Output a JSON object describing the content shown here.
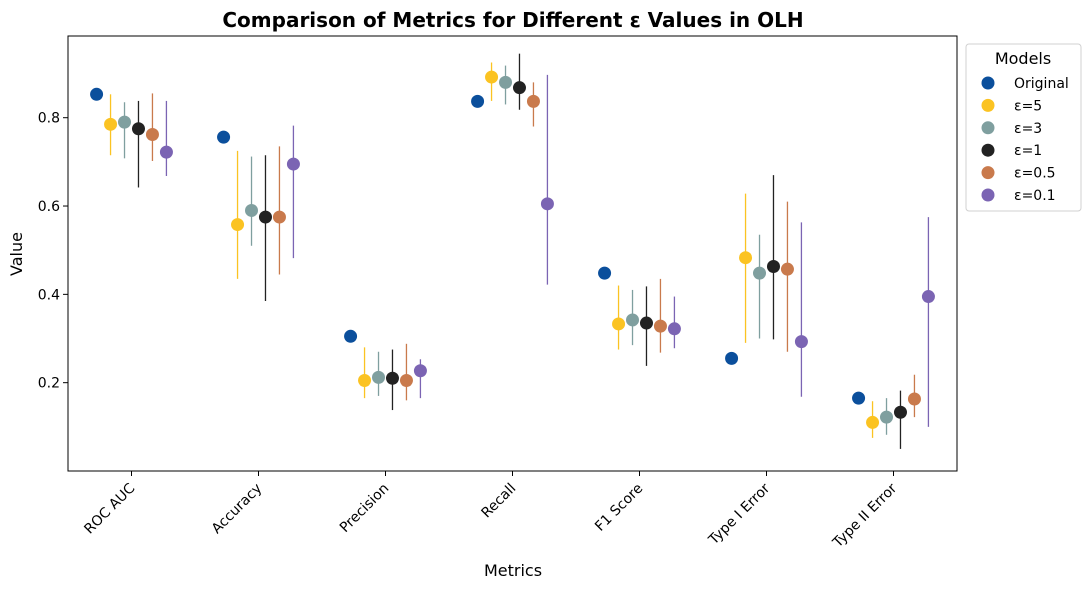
{
  "chart_data": {
    "type": "scatter",
    "title": "Comparison of Metrics for Different ε Values in OLH",
    "xlabel": "Metrics",
    "ylabel": "Value",
    "ylim": [
      0.0,
      0.985
    ],
    "yticks": [
      "0.2",
      "0.4",
      "0.6",
      "0.8"
    ],
    "categories": [
      "ROC AUC",
      "Accuracy",
      "Precision",
      "Recall",
      "F1 Score",
      "Type I Error",
      "Type II Error"
    ],
    "legend": {
      "title": "Models",
      "placement": "outside top-right"
    },
    "series": [
      {
        "name": "Original",
        "color": "#0b4f9c",
        "values": [
          0.853,
          0.756,
          0.305,
          0.837,
          0.448,
          0.255,
          0.165
        ],
        "err_low": [
          null,
          null,
          null,
          null,
          null,
          null,
          null
        ],
        "err_high": [
          null,
          null,
          null,
          null,
          null,
          null,
          null
        ]
      },
      {
        "name": "ε=5",
        "color": "#fbc322",
        "values": [
          0.785,
          0.558,
          0.205,
          0.892,
          0.333,
          0.483,
          0.11
        ],
        "err_low": [
          0.715,
          0.435,
          0.165,
          0.838,
          0.275,
          0.29,
          0.075
        ],
        "err_high": [
          0.853,
          0.725,
          0.28,
          0.925,
          0.42,
          0.628,
          0.158
        ]
      },
      {
        "name": "ε=3",
        "color": "#7f9f9f",
        "values": [
          0.79,
          0.59,
          0.212,
          0.88,
          0.342,
          0.448,
          0.122
        ],
        "err_low": [
          0.708,
          0.51,
          0.17,
          0.83,
          0.285,
          0.3,
          0.082
        ],
        "err_high": [
          0.835,
          0.712,
          0.27,
          0.918,
          0.41,
          0.535,
          0.165
        ]
      },
      {
        "name": "ε=1",
        "color": "#222222",
        "values": [
          0.775,
          0.575,
          0.21,
          0.868,
          0.335,
          0.463,
          0.133
        ],
        "err_low": [
          0.642,
          0.385,
          0.138,
          0.818,
          0.238,
          0.298,
          0.05
        ],
        "err_high": [
          0.838,
          0.715,
          0.275,
          0.945,
          0.418,
          0.67,
          0.182
        ]
      },
      {
        "name": "ε=0.5",
        "color": "#c97a4c",
        "values": [
          0.762,
          0.575,
          0.205,
          0.837,
          0.328,
          0.457,
          0.163
        ],
        "err_low": [
          0.702,
          0.445,
          0.16,
          0.78,
          0.268,
          0.27,
          0.122
        ],
        "err_high": [
          0.855,
          0.735,
          0.288,
          0.88,
          0.435,
          0.61,
          0.218
        ]
      },
      {
        "name": "ε=0.1",
        "color": "#7b64b3",
        "values": [
          0.722,
          0.695,
          0.227,
          0.605,
          0.322,
          0.293,
          0.395
        ],
        "err_low": [
          0.668,
          0.482,
          0.165,
          0.422,
          0.278,
          0.168,
          0.1
        ],
        "err_high": [
          0.838,
          0.782,
          0.253,
          0.897,
          0.395,
          0.563,
          0.575
        ]
      }
    ]
  }
}
